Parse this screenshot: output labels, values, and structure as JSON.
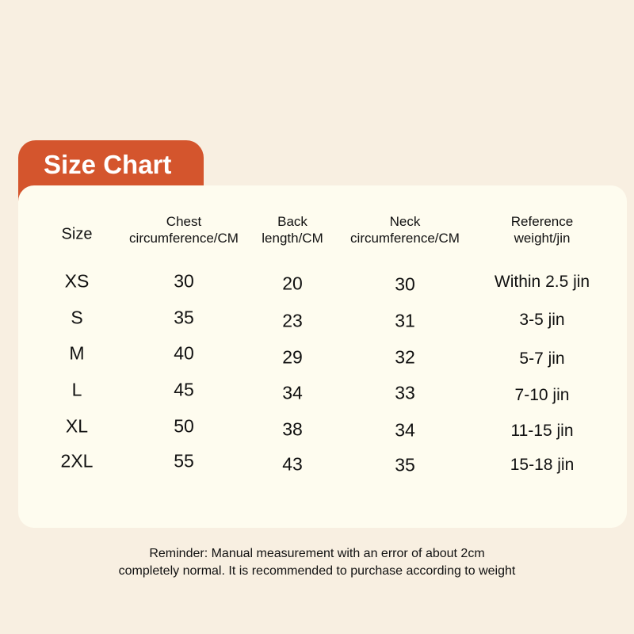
{
  "title": "Size Chart",
  "headers": [
    "Size",
    "Chest circumference/CM",
    "Back length/CM",
    "Neck circumference/CM",
    "Reference weight/jin"
  ],
  "header_lines": [
    [
      "Size"
    ],
    [
      "Chest",
      "circumference/CM"
    ],
    [
      "Back",
      "length/CM"
    ],
    [
      "Neck",
      "circumference/CM"
    ],
    [
      "Reference",
      "weight/jin"
    ]
  ],
  "rows": [
    [
      "XS",
      "30",
      "20",
      "30",
      "Within 2.5 jin"
    ],
    [
      "S",
      "35",
      "23",
      "31",
      "3-5 jin"
    ],
    [
      "M",
      "40",
      "29",
      "32",
      "5-7 jin"
    ],
    [
      "L",
      "45",
      "34",
      "33",
      "7-10 jin"
    ],
    [
      "XL",
      "50",
      "38",
      "34",
      "11-15 jin"
    ],
    [
      "2XL",
      "55",
      "43",
      "35",
      "15-18 jin"
    ]
  ],
  "reminder": [
    "Reminder: Manual measurement with an error of about 2cm",
    "completely normal. It is recommended to purchase according to weight"
  ],
  "colors": {
    "background": "#f8efe1",
    "card": "#fefcef",
    "accent": "#d4552d"
  }
}
